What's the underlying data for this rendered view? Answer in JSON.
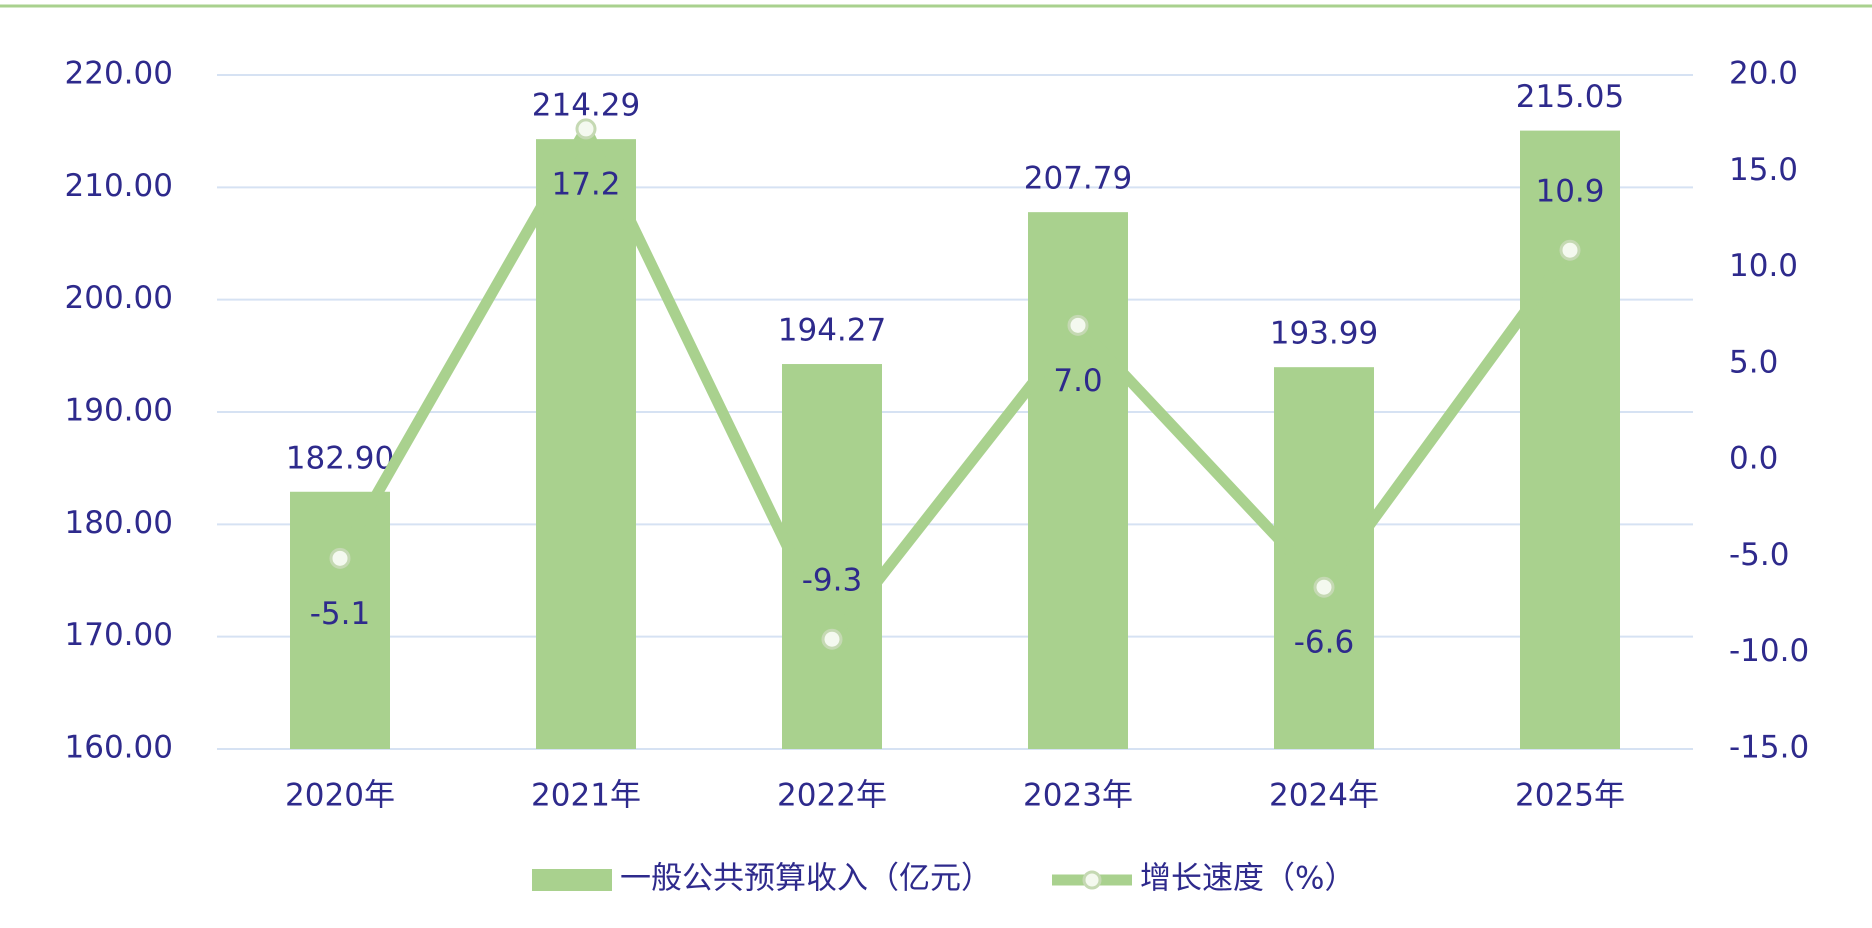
{
  "chart_data": {
    "type": "bar-line",
    "categories": [
      "2020年",
      "2021年",
      "2022年",
      "2023年",
      "2024年",
      "2025年"
    ],
    "series": [
      {
        "name": "一般公共预算收入（亿元）",
        "type": "bar",
        "color": "#a9d18e",
        "values": [
          182.9,
          214.29,
          194.27,
          207.79,
          193.99,
          215.05
        ],
        "value_labels": [
          "182.90",
          "214.29",
          "194.27",
          "207.79",
          "193.99",
          "215.05"
        ]
      },
      {
        "name": "增长速度（%）",
        "type": "line",
        "axis": "y2",
        "color": "#a9d18e",
        "values": [
          -5.1,
          17.2,
          -9.3,
          7.0,
          -6.6,
          10.9
        ],
        "value_labels": [
          "-5.1",
          "17.2",
          "-9.3",
          "7.0",
          "-6.6",
          "10.9"
        ]
      }
    ],
    "ylim": [
      160,
      220
    ],
    "yticks": [
      {
        "value": 160,
        "label": "160.00"
      },
      {
        "value": 170,
        "label": "170.00"
      },
      {
        "value": 180,
        "label": "180.00"
      },
      {
        "value": 190,
        "label": "190.00"
      },
      {
        "value": 200,
        "label": "200.00"
      },
      {
        "value": 210,
        "label": "210.00"
      },
      {
        "value": 220,
        "label": "220.00"
      }
    ],
    "y2lim": [
      -15,
      20
    ],
    "y2ticks": [
      {
        "value": -15,
        "label": "-15.0"
      },
      {
        "value": -10,
        "label": "-10.0"
      },
      {
        "value": -5,
        "label": "-5.0"
      },
      {
        "value": 0,
        "label": "0.0"
      },
      {
        "value": 5,
        "label": "5.0"
      },
      {
        "value": 10,
        "label": "10.0"
      },
      {
        "value": 15,
        "label": "15.0"
      },
      {
        "value": 20,
        "label": "20.0"
      }
    ],
    "grid": true,
    "legend": "bottom"
  }
}
